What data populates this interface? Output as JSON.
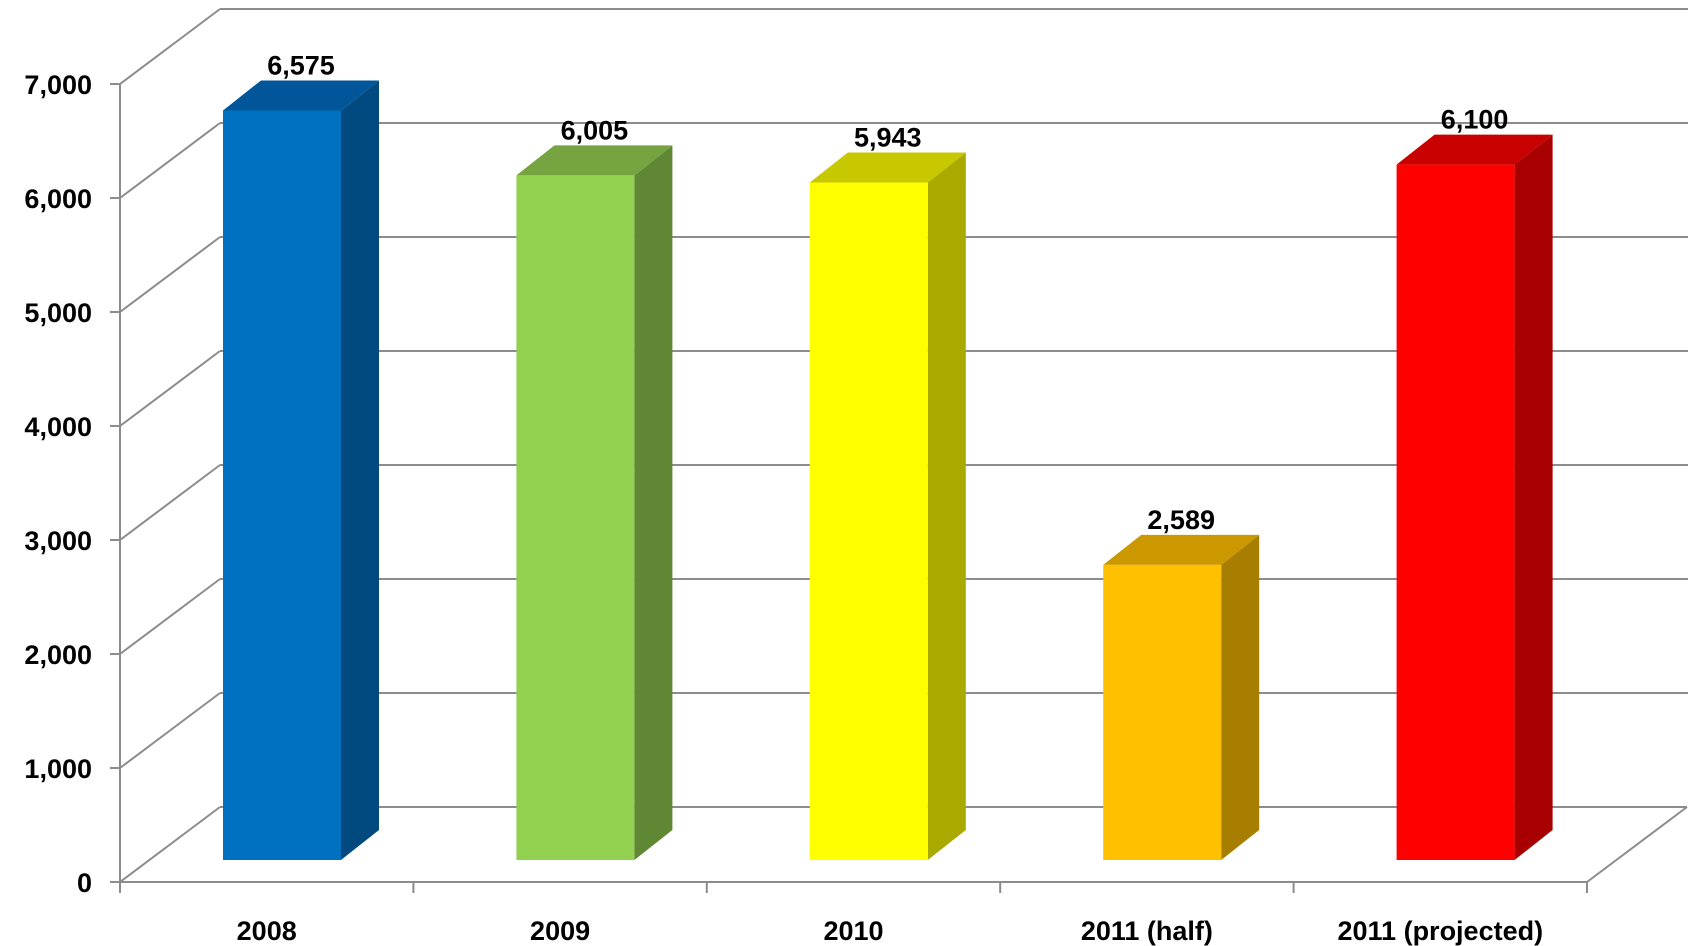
{
  "chart_data": {
    "type": "bar",
    "style": "3d-column",
    "categories": [
      "2008",
      "2009",
      "2010",
      "2011 (half)",
      "2011 (projected)"
    ],
    "values": [
      6575,
      6005,
      5943,
      2589,
      6100
    ],
    "data_labels": [
      "6,575",
      "6,005",
      "5,943",
      "2,589",
      "6,100"
    ],
    "ylim": [
      0,
      7000
    ],
    "yticks": [
      0,
      1000,
      2000,
      3000,
      4000,
      5000,
      6000,
      7000
    ],
    "ytick_labels": [
      "0",
      "1,000",
      "2,000",
      "3,000",
      "4,000",
      "5,000",
      "6,000",
      "7,000"
    ],
    "title": "",
    "xlabel": "",
    "ylabel": "",
    "grid": true,
    "legend": "none",
    "colors": {
      "front": [
        "#0070C0",
        "#92D050",
        "#FFFF00",
        "#FFC000",
        "#FF0000"
      ],
      "side": [
        "#004A80",
        "#5F8734",
        "#A9A900",
        "#A87E00",
        "#A80000"
      ],
      "top": [
        "#005698",
        "#76A440",
        "#C8C800",
        "#CC9800",
        "#C80000"
      ],
      "grid": "#8C8C8C"
    }
  }
}
